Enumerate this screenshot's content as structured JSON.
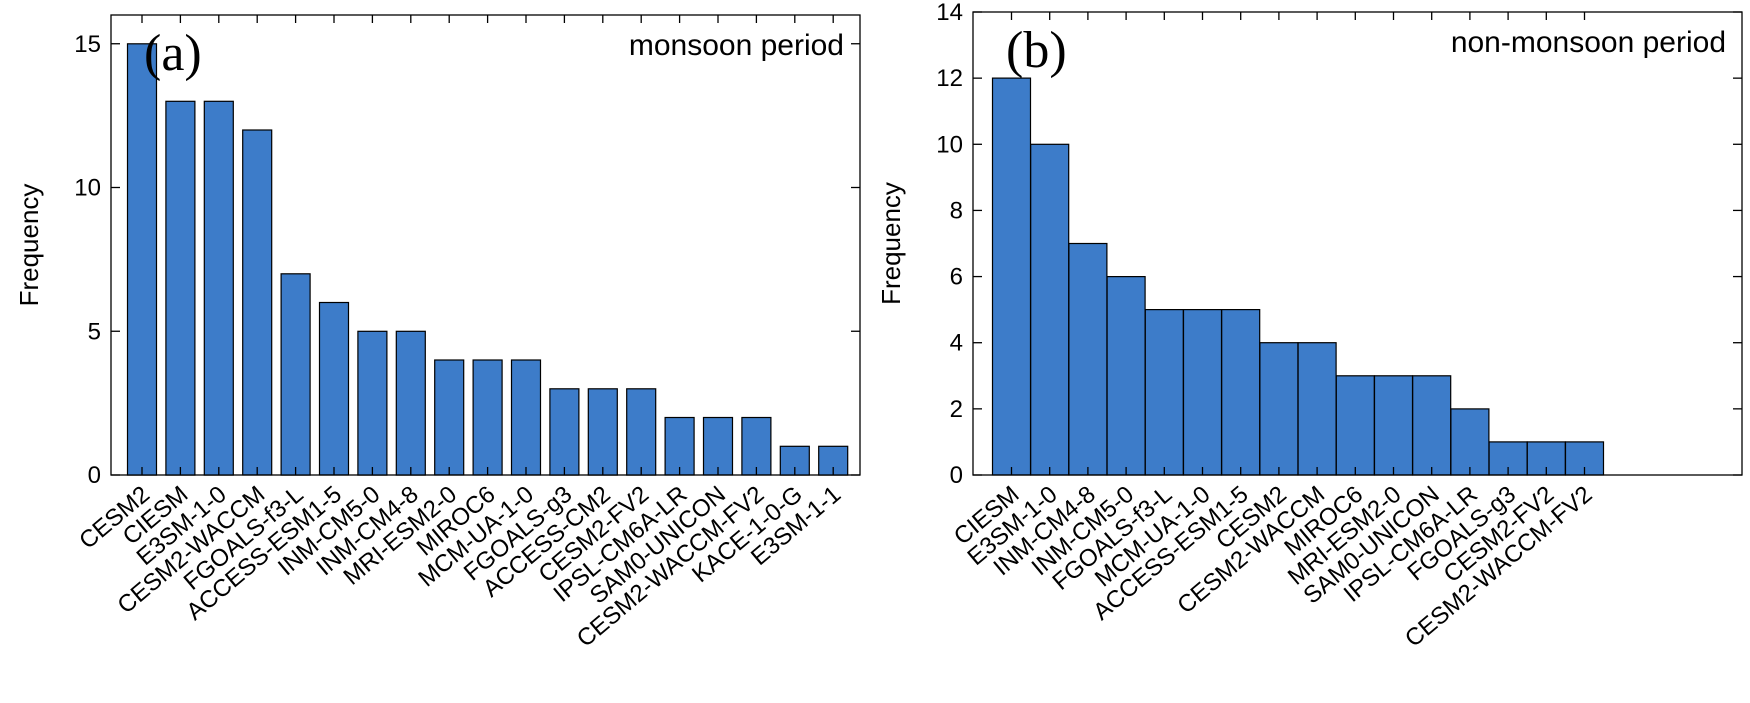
{
  "bar_color": "#3d7cc9",
  "chart_data": [
    {
      "type": "bar",
      "panel_label": "(a)",
      "title": "monsoon period",
      "ylabel": "Frequency",
      "xlabel": "",
      "ylim": [
        0,
        16
      ],
      "yticks": [
        0,
        5,
        10,
        15
      ],
      "categories": [
        "CESM2",
        "CIESM",
        "E3SM-1-0",
        "CESM2-WACCM",
        "FGOALS-f3-L",
        "ACCESS-ESM1-5",
        "INM-CM5-0",
        "INM-CM4-8",
        "MRI-ESM2-0",
        "MIROC6",
        "MCM-UA-1-0",
        "FGOALS-g3",
        "ACCESS-CM2",
        "CESM2-FV2",
        "IPSL-CM6A-LR",
        "SAM0-UNICON",
        "CESM2-WACCM-FV2",
        "KACE-1-0-G",
        "E3SM-1-1"
      ],
      "values": [
        15,
        13,
        13,
        12,
        7,
        6,
        5,
        5,
        4,
        4,
        4,
        3,
        3,
        3,
        2,
        2,
        2,
        1,
        1
      ]
    },
    {
      "type": "bar",
      "panel_label": "(b)",
      "title": "non-monsoon period",
      "ylabel": "Frequency",
      "xlabel": "",
      "ylim": [
        0,
        14
      ],
      "yticks": [
        0,
        2,
        4,
        6,
        8,
        10,
        12,
        14
      ],
      "categories": [
        "CIESM",
        "E3SM-1-0",
        "INM-CM4-8",
        "INM-CM5-0",
        "FGOALS-f3-L",
        "MCM-UA-1-0",
        "ACCESS-ESM1-5",
        "CESM2",
        "CESM2-WACCM",
        "MIROC6",
        "MRI-ESM2-0",
        "SAM0-UNICON",
        "IPSL-CM6A-LR",
        "FGOALS-g3",
        "CESM2-FV2",
        "CESM2-WACCM-FV2"
      ],
      "values": [
        12,
        10,
        7,
        6,
        5,
        5,
        5,
        4,
        4,
        3,
        3,
        3,
        2,
        1,
        1,
        1
      ]
    }
  ]
}
